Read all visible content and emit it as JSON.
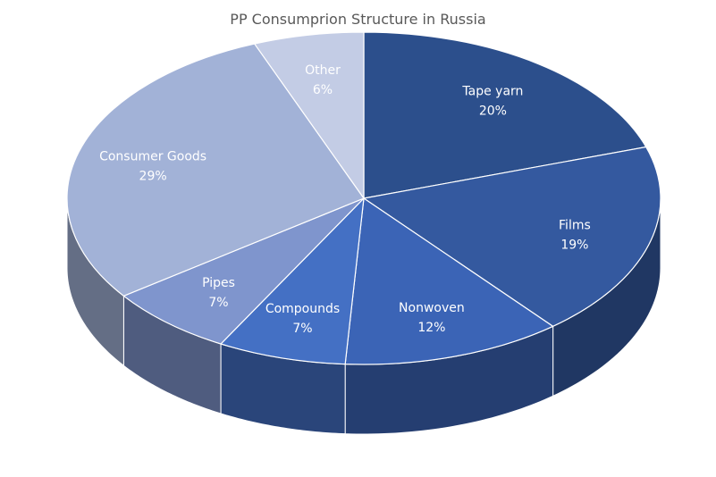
{
  "chart_data": {
    "type": "pie",
    "title": "PP Consumprion Structure in Russia",
    "categories": [
      "Tape yarn",
      "Films",
      "Nonwoven",
      "Compounds",
      "Pipes",
      "Consumer Goods",
      "Other"
    ],
    "values": [
      20,
      19,
      12,
      7,
      7,
      29,
      6
    ],
    "value_labels": [
      "20%",
      "19%",
      "12%",
      "7%",
      "7%",
      "29%",
      "6%"
    ],
    "colors": [
      "#2c4f8c",
      "#34599f",
      "#3b64b6",
      "#4470c4",
      "#7f95cd",
      "#a2b2d7",
      "#c3cce5"
    ],
    "legend": "none"
  }
}
